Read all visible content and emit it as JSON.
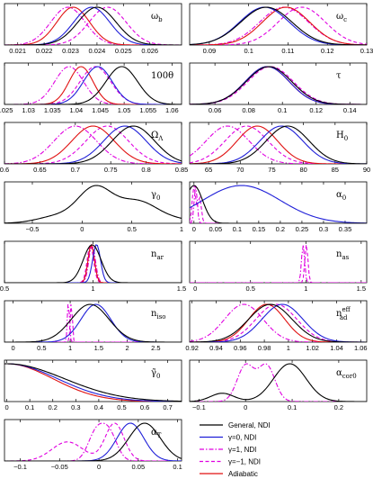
{
  "colors": {
    "general": "#000000",
    "gamma0": "#1f1fd8",
    "gammap1": "#e000e0",
    "gamman1": "#e000e0",
    "adiabatic": "#e01010"
  },
  "legend": [
    {
      "key": "general",
      "label": "General, NDI",
      "dash": "none"
    },
    {
      "key": "gamma0",
      "label": "γ=0, NDI",
      "dash": "none"
    },
    {
      "key": "gammap1",
      "label": "γ=1, NDI",
      "dash": "5,2,1.5,2"
    },
    {
      "key": "gamman1",
      "label": "γ=−1, NDI",
      "dash": "4,2.5"
    },
    {
      "key": "adiabatic",
      "label": "Adiabatic",
      "dash": "none"
    }
  ],
  "chart_data": [
    {
      "type": "line",
      "label_main": "ω",
      "label_sub": "b",
      "label_sup": "",
      "xlim": [
        0.0205,
        0.0272
      ],
      "ticks": [
        {
          "v": 0.021,
          "t": "0.021"
        },
        {
          "v": 0.022,
          "t": "0.022"
        },
        {
          "v": 0.023,
          "t": "0.023"
        },
        {
          "v": 0.024,
          "t": "0.024"
        },
        {
          "v": 0.025,
          "t": "0.025"
        },
        {
          "v": 0.026,
          "t": "0.026"
        }
      ],
      "curves": {
        "general": [
          [
            0.024,
            0.00072,
            1
          ]
        ],
        "gamma0": [
          [
            0.0238,
            0.00068,
            1
          ]
        ],
        "gammap1": [
          [
            0.0229,
            0.00065,
            1
          ]
        ],
        "gamman1": [
          [
            0.0244,
            0.0007,
            1
          ]
        ],
        "adiabatic": [
          [
            0.0231,
            0.00062,
            1
          ]
        ]
      }
    },
    {
      "type": "line",
      "label_main": "ω",
      "label_sub": "c",
      "label_sup": "",
      "xlim": [
        0.085,
        0.13
      ],
      "ticks": [
        {
          "v": 0.09,
          "t": "0.09"
        },
        {
          "v": 0.1,
          "t": "0.1"
        },
        {
          "v": 0.11,
          "t": "0.11"
        },
        {
          "v": 0.12,
          "t": "0.12"
        },
        {
          "v": 0.13,
          "t": "0.13"
        }
      ],
      "curves": {
        "general": [
          [
            0.1045,
            0.0065,
            1
          ]
        ],
        "gamma0": [
          [
            0.104,
            0.0063,
            1
          ]
        ],
        "gammap1": [
          [
            0.109,
            0.0062,
            1
          ]
        ],
        "gamman1": [
          [
            0.1135,
            0.006,
            1
          ]
        ],
        "adiabatic": [
          [
            0.1095,
            0.006,
            1
          ]
        ]
      }
    },
    {
      "type": "line",
      "label_main": "100θ",
      "label_sub": "",
      "label_sup": "",
      "xlim": [
        1.025,
        1.062
      ],
      "ticks": [
        {
          "v": 1.025,
          "t": "1.025"
        },
        {
          "v": 1.03,
          "t": "1.03"
        },
        {
          "v": 1.035,
          "t": "1.035"
        },
        {
          "v": 1.04,
          "t": "1.04"
        },
        {
          "v": 1.045,
          "t": "1.045"
        },
        {
          "v": 1.05,
          "t": "1.05"
        },
        {
          "v": 1.055,
          "t": "1.055"
        },
        {
          "v": 1.06,
          "t": "1.06"
        }
      ],
      "curves": {
        "general": [
          [
            1.0495,
            0.0033,
            1
          ]
        ],
        "gamma0": [
          [
            1.0445,
            0.003,
            1
          ]
        ],
        "gammap1": [
          [
            1.0385,
            0.003,
            1
          ]
        ],
        "gamman1": [
          [
            1.044,
            0.0032,
            1
          ]
        ],
        "adiabatic": [
          [
            1.041,
            0.0025,
            1
          ]
        ]
      }
    },
    {
      "type": "line",
      "label_main": "τ",
      "label_sub": "",
      "label_sup": "",
      "xlim": [
        0.045,
        0.15
      ],
      "ticks": [
        {
          "v": 0.06,
          "t": "0.06"
        },
        {
          "v": 0.08,
          "t": "0.08"
        },
        {
          "v": 0.1,
          "t": "0.1"
        },
        {
          "v": 0.12,
          "t": "0.12"
        },
        {
          "v": 0.14,
          "t": "0.14"
        }
      ],
      "curves": {
        "general": [
          [
            0.092,
            0.0135,
            1
          ]
        ],
        "gamma0": [
          [
            0.091,
            0.013,
            1
          ]
        ],
        "gammap1": [
          [
            0.092,
            0.0135,
            1
          ]
        ],
        "gamman1": [
          [
            0.093,
            0.0135,
            1
          ]
        ],
        "adiabatic": [
          [
            0.091,
            0.013,
            1
          ]
        ]
      }
    },
    {
      "type": "line",
      "label_main": "Ω",
      "label_sub": "Λ",
      "label_sup": "",
      "xlim": [
        0.6,
        0.85
      ],
      "ticks": [
        {
          "v": 0.6,
          "t": "0.6"
        },
        {
          "v": 0.65,
          "t": "0.65"
        },
        {
          "v": 0.7,
          "t": "0.7"
        },
        {
          "v": 0.75,
          "t": "0.75"
        },
        {
          "v": 0.8,
          "t": "0.8"
        },
        {
          "v": 0.85,
          "t": "0.85"
        }
      ],
      "curves": {
        "general": [
          [
            0.782,
            0.03,
            1
          ]
        ],
        "gamma0": [
          [
            0.77,
            0.03,
            1
          ]
        ],
        "gammap1": [
          [
            0.7,
            0.03,
            1
          ]
        ],
        "gamman1": [
          [
            0.745,
            0.03,
            1
          ]
        ],
        "adiabatic": [
          [
            0.725,
            0.03,
            1
          ]
        ]
      }
    },
    {
      "type": "line",
      "label_main": "H",
      "label_sub": "0",
      "label_sup": "",
      "xlim": [
        62,
        90
      ],
      "ticks": [
        {
          "v": 65,
          "t": "65"
        },
        {
          "v": 70,
          "t": "70"
        },
        {
          "v": 75,
          "t": "75"
        },
        {
          "v": 80,
          "t": "80"
        },
        {
          "v": 85,
          "t": "85"
        },
        {
          "v": 90,
          "t": "90"
        }
      ],
      "curves": {
        "general": [
          [
            77.5,
            3.4,
            1
          ]
        ],
        "gamma0": [
          [
            76.5,
            3.4,
            1
          ]
        ],
        "gammap1": [
          [
            68.0,
            3.4,
            1
          ]
        ],
        "gamman1": [
          [
            71.0,
            3.4,
            1
          ]
        ],
        "adiabatic": [
          [
            72.7,
            3.2,
            1
          ]
        ]
      }
    },
    {
      "type": "line",
      "label_main": "γ",
      "label_sub": "0",
      "label_sup": "",
      "xlim": [
        -0.78,
        1.0
      ],
      "ticks": [
        {
          "v": -0.5,
          "t": "−0.5"
        },
        {
          "v": 0,
          "t": "0"
        },
        {
          "v": 0.5,
          "t": "0.5"
        },
        {
          "v": 1,
          "t": "1"
        }
      ],
      "curves": {
        "general": [
          [
            0.13,
            0.17,
            1
          ],
          [
            0.55,
            0.2,
            0.62
          ],
          [
            -0.25,
            0.2,
            0.2
          ],
          [
            0.95,
            0.22,
            0.1
          ]
        ]
      }
    },
    {
      "type": "line",
      "label_main": "α",
      "label_sub": "0",
      "label_sup": "",
      "xlim": [
        -0.01,
        0.4
      ],
      "ticks": [
        {
          "v": 0,
          "t": "0"
        },
        {
          "v": 0.05,
          "t": "0.05"
        },
        {
          "v": 0.1,
          "t": "0.1"
        },
        {
          "v": 0.15,
          "t": "0.15"
        },
        {
          "v": 0.2,
          "t": "0.2"
        },
        {
          "v": 0.25,
          "t": "0.25"
        },
        {
          "v": 0.3,
          "t": "0.3"
        },
        {
          "v": 0.35,
          "t": "0.35"
        }
      ],
      "curves": {
        "general": [
          [
            0.0,
            0.02,
            1
          ]
        ],
        "gamma0": [
          [
            0.11,
            0.09,
            1
          ]
        ],
        "gammap1": [
          [
            0.004,
            0.0035,
            0.6
          ]
        ],
        "gamman1": [
          [
            0.0,
            0.004,
            1
          ],
          [
            0.013,
            0.004,
            0.7
          ]
        ]
      }
    },
    {
      "type": "line",
      "label_main": "n",
      "label_sub": "ar",
      "label_sup": "",
      "xlim": [
        0.5,
        1.5
      ],
      "ticks": [
        {
          "v": 0.5,
          "t": "0.5"
        },
        {
          "v": 1,
          "t": "1"
        },
        {
          "v": 1.5,
          "t": "1.5"
        }
      ],
      "curves": {
        "general": [
          [
            0.995,
            0.05,
            1
          ]
        ],
        "gamma0": [
          [
            1.02,
            0.022,
            1
          ]
        ],
        "gammap1": [
          [
            0.995,
            0.018,
            1
          ]
        ],
        "gamman1": [
          [
            0.985,
            0.018,
            1
          ]
        ],
        "adiabatic": [
          [
            0.99,
            0.018,
            1
          ]
        ]
      }
    },
    {
      "type": "line",
      "label_main": "n",
      "label_sub": "as",
      "label_sup": "",
      "xlim": [
        -0.05,
        1.55
      ],
      "ticks": [
        {
          "v": 0,
          "t": "0"
        },
        {
          "v": 0.5,
          "t": "0.5"
        },
        {
          "v": 1,
          "t": "1"
        },
        {
          "v": 1.5,
          "t": "1.5"
        }
      ],
      "curves": {
        "gammap1": [
          [
            0.975,
            0.014,
            1
          ]
        ],
        "gamman1": [
          [
            1.005,
            0.014,
            1
          ]
        ]
      }
    },
    {
      "type": "line",
      "label_main": "n",
      "label_sub": "iso",
      "label_sup": "",
      "xlim": [
        -0.15,
        2.95
      ],
      "ticks": [
        {
          "v": 0,
          "t": "0"
        },
        {
          "v": 0.5,
          "t": "0.5"
        },
        {
          "v": 1,
          "t": "1"
        },
        {
          "v": 1.5,
          "t": "1.5"
        },
        {
          "v": 2,
          "t": "2"
        },
        {
          "v": 2.5,
          "t": "2.5"
        }
      ],
      "curves": {
        "general": [
          [
            1.35,
            0.33,
            1
          ]
        ],
        "gamma0": [
          [
            1.45,
            0.26,
            1
          ]
        ],
        "gammap1": [
          [
            0.97,
            0.018,
            1
          ]
        ],
        "gamman1": [
          [
            1.02,
            0.018,
            1
          ]
        ]
      }
    },
    {
      "type": "line",
      "label_main": "n",
      "label_sub": "ad",
      "label_sup": "eff",
      "xlim": [
        0.918,
        1.065
      ],
      "ticks": [
        {
          "v": 0.92,
          "t": "0.92"
        },
        {
          "v": 0.94,
          "t": "0.94"
        },
        {
          "v": 0.96,
          "t": "0.96"
        },
        {
          "v": 0.98,
          "t": "0.98"
        },
        {
          "v": 1.0,
          "t": "1"
        },
        {
          "v": 1.02,
          "t": "1.02"
        },
        {
          "v": 1.04,
          "t": "1.04"
        },
        {
          "v": 1.06,
          "t": "1.06"
        }
      ],
      "curves": {
        "general": [
          [
            0.985,
            0.018,
            1
          ]
        ],
        "gamma0": [
          [
            0.995,
            0.017,
            1
          ]
        ],
        "gammap1": [
          [
            0.963,
            0.016,
            1
          ]
        ],
        "gamman1": [
          [
            0.99,
            0.017,
            1
          ]
        ],
        "adiabatic": [
          [
            0.982,
            0.015,
            1
          ]
        ]
      }
    },
    {
      "type": "line",
      "label_main": "γ̃",
      "label_sub": "0",
      "label_sup": "",
      "xlim": [
        -0.01,
        0.76
      ],
      "ticks": [
        {
          "v": 0,
          "t": "0"
        },
        {
          "v": 0.1,
          "t": "0.1"
        },
        {
          "v": 0.2,
          "t": "0.2"
        },
        {
          "v": 0.3,
          "t": "0.3"
        },
        {
          "v": 0.4,
          "t": "0.4"
        },
        {
          "v": 0.5,
          "t": "0.5"
        },
        {
          "v": 0.6,
          "t": "0.6"
        },
        {
          "v": 0.7,
          "t": "0.7"
        }
      ],
      "curves": {
        "general": [
          [
            0.0,
            0.25,
            1
          ]
        ],
        "gamma0": [
          [
            0.0,
            0.22,
            1
          ]
        ],
        "adiabatic": [
          [
            0.0,
            0.2,
            1
          ]
        ]
      }
    },
    {
      "type": "line",
      "label_main": "α",
      "label_sub": "cor0",
      "label_sup": "",
      "xlim": [
        -0.12,
        0.26
      ],
      "ticks": [
        {
          "v": -0.1,
          "t": "−0.1"
        },
        {
          "v": 0,
          "t": "0"
        },
        {
          "v": 0.1,
          "t": "0.1"
        },
        {
          "v": 0.2,
          "t": "0.2"
        }
      ],
      "curves": {
        "general": [
          [
            0.095,
            0.035,
            1
          ],
          [
            -0.05,
            0.025,
            0.22
          ]
        ],
        "gammap1": [
          [
            0.0,
            0.018,
            0.62
          ],
          [
            0.045,
            0.018,
            0.62
          ]
        ]
      }
    },
    {
      "type": "line",
      "label_main": "α",
      "label_sub": "T",
      "label_sup": "",
      "xlim": [
        -0.12,
        0.105
      ],
      "ticks": [
        {
          "v": -0.1,
          "t": "−0.1"
        },
        {
          "v": -0.05,
          "t": "−0.05"
        },
        {
          "v": 0,
          "t": "0"
        },
        {
          "v": 0.05,
          "t": "0.05"
        },
        {
          "v": 0.1,
          "t": "0.1"
        }
      ],
      "curves": {
        "general": [
          [
            0.058,
            0.02,
            1
          ]
        ],
        "gamma0": [
          [
            0.04,
            0.017,
            1
          ]
        ],
        "gammap1": [
          [
            -0.004,
            0.01,
            0.7
          ],
          [
            0.013,
            0.01,
            0.7
          ]
        ],
        "gamman1": [
          [
            0.02,
            0.012,
            0.75
          ],
          [
            -0.04,
            0.02,
            0.38
          ]
        ]
      }
    }
  ]
}
